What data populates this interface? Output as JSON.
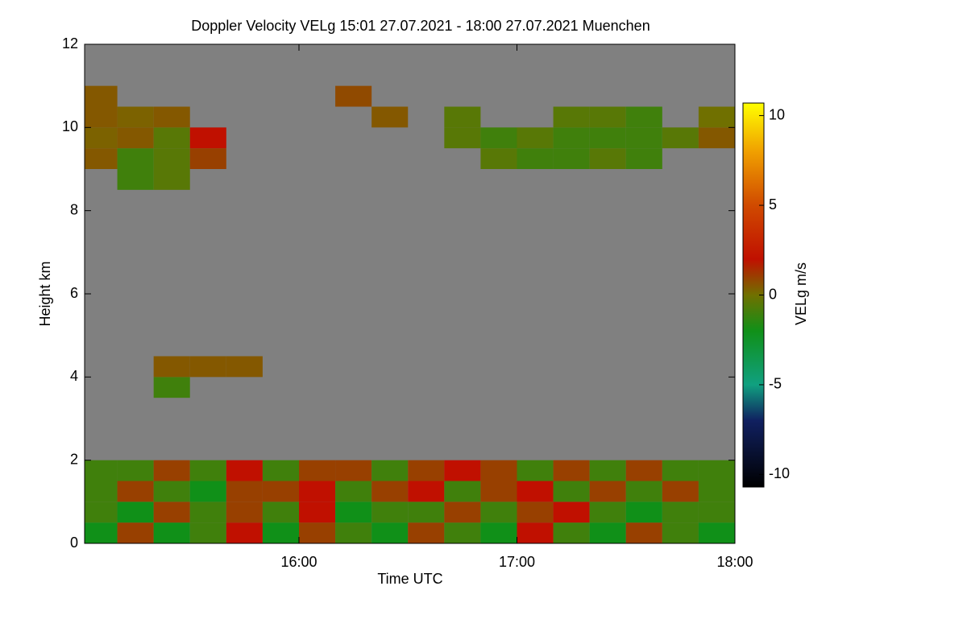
{
  "chart_data": {
    "type": "heatmap",
    "title": "Doppler Velocity VELg   15:01 27.07.2021 - 18:00 27.07.2021 Muenchen",
    "x_label": "Time UTC",
    "y_label": "Height km",
    "colorbar_label": "VELg m/s",
    "xlim": [
      1,
      180
    ],
    "xticks": [
      {
        "value": 60,
        "label": "16:00"
      },
      {
        "value": 120,
        "label": "17:00"
      },
      {
        "value": 180,
        "label": "18:00"
      }
    ],
    "ylim": [
      0,
      12
    ],
    "yticks": [
      0,
      2,
      4,
      6,
      8,
      10,
      12
    ],
    "clim": [
      -10.7,
      10.7
    ],
    "cticks": [
      -10,
      -5,
      0,
      5,
      10
    ],
    "background": "#808080",
    "colorscale": [
      [
        -10.7,
        "#000000"
      ],
      [
        -7,
        "#102060"
      ],
      [
        -5,
        "#10a080"
      ],
      [
        -2,
        "#109018"
      ],
      [
        0,
        "#707000"
      ],
      [
        2,
        "#c01000"
      ],
      [
        5,
        "#d04a00"
      ],
      [
        8,
        "#f0a000"
      ],
      [
        10.7,
        "#ffff00"
      ]
    ],
    "xbins": [
      0,
      10,
      20,
      30,
      40,
      50,
      60,
      70,
      80,
      90,
      100,
      110,
      120,
      130,
      140,
      150,
      160,
      170,
      180
    ],
    "ybins": [
      0,
      0.5,
      1,
      1.5,
      2,
      2.5,
      3,
      3.5,
      4,
      4.5,
      5,
      5.5,
      6,
      6.5,
      7,
      7.5,
      8,
      8.5,
      9,
      9.5,
      10,
      10.5,
      11,
      11.5,
      12
    ],
    "z": [
      [
        -2,
        1,
        -2,
        -1,
        2,
        -2,
        1,
        -1,
        -2,
        1,
        -1,
        -2,
        2,
        -1,
        -2,
        1,
        -1,
        -2
      ],
      [
        -1,
        -2,
        1,
        -1,
        1,
        -1,
        2,
        -2,
        -1,
        -1,
        1,
        -1,
        1,
        2,
        -1,
        -2,
        -1,
        -1
      ],
      [
        -1,
        1,
        -1,
        -2,
        1,
        1,
        2,
        -1,
        1,
        2,
        -1,
        1,
        2,
        -1,
        1,
        -1,
        1,
        -1
      ],
      [
        -1,
        -1,
        1,
        -1,
        2,
        -1,
        1,
        1,
        -1,
        1,
        2,
        1,
        -1,
        1,
        -1,
        1,
        -1,
        -1
      ],
      [
        null,
        null,
        null,
        null,
        null,
        null,
        null,
        null,
        null,
        null,
        null,
        null,
        null,
        null,
        null,
        null,
        null,
        null
      ],
      [
        null,
        null,
        null,
        null,
        null,
        null,
        null,
        null,
        null,
        null,
        null,
        null,
        null,
        null,
        null,
        null,
        null,
        null
      ],
      [
        null,
        null,
        null,
        null,
        null,
        null,
        null,
        null,
        null,
        null,
        null,
        null,
        null,
        null,
        null,
        null,
        null,
        null
      ],
      [
        null,
        null,
        -1,
        null,
        null,
        null,
        null,
        null,
        null,
        null,
        null,
        null,
        null,
        null,
        null,
        null,
        null,
        null
      ],
      [
        null,
        null,
        0.5,
        0.5,
        0.5,
        null,
        null,
        null,
        null,
        null,
        null,
        null,
        null,
        null,
        null,
        null,
        null,
        null
      ],
      [
        null,
        null,
        null,
        null,
        null,
        null,
        null,
        null,
        null,
        null,
        null,
        null,
        null,
        null,
        null,
        null,
        null,
        null
      ],
      [
        null,
        null,
        null,
        null,
        null,
        null,
        null,
        null,
        null,
        null,
        null,
        null,
        null,
        null,
        null,
        null,
        null,
        null
      ],
      [
        null,
        null,
        null,
        null,
        null,
        null,
        null,
        null,
        null,
        null,
        null,
        null,
        null,
        null,
        null,
        null,
        null,
        null
      ],
      [
        null,
        null,
        null,
        null,
        null,
        null,
        null,
        null,
        null,
        null,
        null,
        null,
        null,
        null,
        null,
        null,
        null,
        null
      ],
      [
        null,
        null,
        null,
        null,
        null,
        null,
        null,
        null,
        null,
        null,
        null,
        null,
        null,
        null,
        null,
        null,
        null,
        null
      ],
      [
        null,
        null,
        null,
        null,
        null,
        null,
        null,
        null,
        null,
        null,
        null,
        null,
        null,
        null,
        null,
        null,
        null,
        null
      ],
      [
        null,
        null,
        null,
        null,
        null,
        null,
        null,
        null,
        null,
        null,
        null,
        null,
        null,
        null,
        null,
        null,
        null,
        null
      ],
      [
        null,
        null,
        null,
        null,
        null,
        null,
        null,
        null,
        null,
        null,
        null,
        null,
        null,
        null,
        null,
        null,
        null,
        null
      ],
      [
        null,
        -1,
        -0.5,
        null,
        null,
        null,
        null,
        null,
        null,
        null,
        null,
        null,
        null,
        null,
        null,
        null,
        null,
        null
      ],
      [
        0.5,
        -1,
        -0.5,
        1,
        null,
        null,
        null,
        null,
        null,
        null,
        null,
        -0.5,
        -1,
        -1,
        -0.5,
        -1,
        null,
        null
      ],
      [
        0.3,
        0.5,
        -0.5,
        2,
        null,
        null,
        null,
        null,
        null,
        null,
        -0.5,
        -1,
        -0.5,
        -1,
        -1,
        -1,
        -0.5,
        0.5
      ],
      [
        0.5,
        0.3,
        0.5,
        null,
        null,
        null,
        null,
        null,
        0.5,
        null,
        -0.5,
        null,
        null,
        -0.5,
        -0.5,
        -1,
        null,
        0
      ],
      [
        0.5,
        null,
        null,
        null,
        null,
        null,
        null,
        0.8,
        null,
        null,
        null,
        null,
        null,
        null,
        null,
        null,
        null,
        null
      ],
      [
        null,
        null,
        null,
        null,
        null,
        null,
        null,
        null,
        null,
        null,
        null,
        null,
        null,
        null,
        null,
        null,
        null,
        null
      ],
      [
        null,
        null,
        null,
        null,
        null,
        null,
        null,
        null,
        null,
        null,
        null,
        null,
        null,
        null,
        null,
        null,
        null,
        null
      ]
    ]
  }
}
